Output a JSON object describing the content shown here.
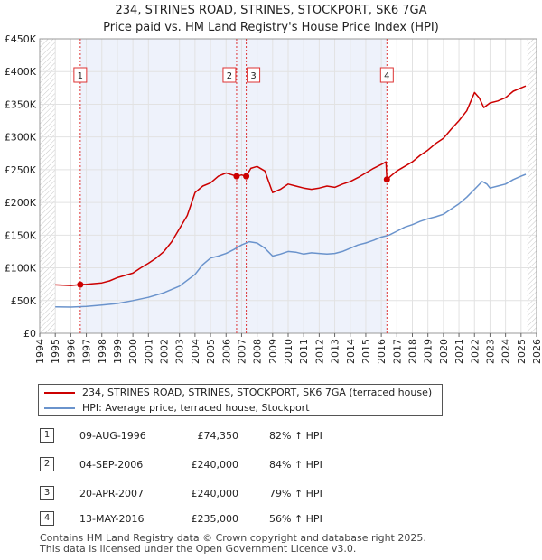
{
  "chart_data": {
    "type": "line",
    "title": "234, STRINES ROAD, STRINES, STOCKPORT, SK6 7GA",
    "subtitle": "Price paid vs. HM Land Registry's House Price Index (HPI)",
    "ylim": [
      0,
      450000
    ],
    "xlim": [
      1994,
      2026
    ],
    "y_ticks": [
      0,
      50000,
      100000,
      150000,
      200000,
      250000,
      300000,
      350000,
      400000,
      450000
    ],
    "y_tick_labels": [
      "£0",
      "£50K",
      "£100K",
      "£150K",
      "£200K",
      "£250K",
      "£300K",
      "£350K",
      "£400K",
      "£450K"
    ],
    "x_ticks": [
      "1994",
      "1995",
      "1996",
      "1997",
      "1998",
      "1999",
      "2000",
      "2001",
      "2002",
      "2003",
      "2004",
      "2005",
      "2006",
      "2007",
      "2008",
      "2009",
      "2010",
      "2011",
      "2012",
      "2013",
      "2014",
      "2015",
      "2016",
      "2017",
      "2018",
      "2019",
      "2020",
      "2021",
      "2022",
      "2023",
      "2024",
      "2025",
      "2026"
    ],
    "data_start_x": 1995,
    "data_end_x": 2025.4,
    "series": [
      {
        "name": "234, STRINES ROAD, STRINES, STOCKPORT, SK6 7GA (terraced house)",
        "color": "#cc0000",
        "points": [
          [
            1995,
            74000
          ],
          [
            1995.5,
            73500
          ],
          [
            1996,
            73000
          ],
          [
            1996.6,
            74350
          ],
          [
            1997,
            75000
          ],
          [
            1998,
            77000
          ],
          [
            1998.5,
            80000
          ],
          [
            1999,
            85000
          ],
          [
            2000,
            92000
          ],
          [
            2000.5,
            100000
          ],
          [
            2001,
            107000
          ],
          [
            2001.5,
            115000
          ],
          [
            2002,
            125000
          ],
          [
            2002.5,
            140000
          ],
          [
            2003,
            160000
          ],
          [
            2003.5,
            180000
          ],
          [
            2004,
            215000
          ],
          [
            2004.5,
            225000
          ],
          [
            2005,
            230000
          ],
          [
            2005.5,
            240000
          ],
          [
            2006,
            245000
          ],
          [
            2006.68,
            240000
          ],
          [
            2007,
            242000
          ],
          [
            2007.3,
            240000
          ],
          [
            2007.6,
            252000
          ],
          [
            2008,
            255000
          ],
          [
            2008.5,
            248000
          ],
          [
            2009,
            215000
          ],
          [
            2009.5,
            220000
          ],
          [
            2010,
            228000
          ],
          [
            2010.5,
            225000
          ],
          [
            2011,
            222000
          ],
          [
            2011.5,
            220000
          ],
          [
            2012,
            222000
          ],
          [
            2012.5,
            225000
          ],
          [
            2013,
            223000
          ],
          [
            2013.5,
            228000
          ],
          [
            2014,
            232000
          ],
          [
            2014.5,
            238000
          ],
          [
            2015,
            245000
          ],
          [
            2015.5,
            252000
          ],
          [
            2016,
            258000
          ],
          [
            2016.3,
            262000
          ],
          [
            2016.36,
            235000
          ],
          [
            2016.6,
            240000
          ],
          [
            2017,
            248000
          ],
          [
            2017.5,
            255000
          ],
          [
            2018,
            262000
          ],
          [
            2018.5,
            272000
          ],
          [
            2019,
            280000
          ],
          [
            2019.5,
            290000
          ],
          [
            2020,
            298000
          ],
          [
            2020.5,
            312000
          ],
          [
            2021,
            325000
          ],
          [
            2021.5,
            340000
          ],
          [
            2022,
            368000
          ],
          [
            2022.3,
            360000
          ],
          [
            2022.6,
            345000
          ],
          [
            2023,
            352000
          ],
          [
            2023.5,
            355000
          ],
          [
            2024,
            360000
          ],
          [
            2024.5,
            370000
          ],
          [
            2025,
            375000
          ],
          [
            2025.3,
            378000
          ]
        ]
      },
      {
        "name": "HPI: Average price, terraced house, Stockport",
        "color": "#6a93cc",
        "points": [
          [
            1995,
            40500
          ],
          [
            1996,
            40000
          ],
          [
            1997,
            41000
          ],
          [
            1998,
            43000
          ],
          [
            1999,
            45500
          ],
          [
            2000,
            50000
          ],
          [
            2001,
            55000
          ],
          [
            2002,
            62000
          ],
          [
            2003,
            72000
          ],
          [
            2004,
            90000
          ],
          [
            2004.5,
            105000
          ],
          [
            2005,
            115000
          ],
          [
            2005.5,
            118000
          ],
          [
            2006,
            122000
          ],
          [
            2006.5,
            128000
          ],
          [
            2007,
            135000
          ],
          [
            2007.5,
            140000
          ],
          [
            2008,
            138000
          ],
          [
            2008.5,
            130000
          ],
          [
            2009,
            118000
          ],
          [
            2009.5,
            121000
          ],
          [
            2010,
            125000
          ],
          [
            2010.5,
            124000
          ],
          [
            2011,
            121000
          ],
          [
            2011.5,
            123000
          ],
          [
            2012,
            122000
          ],
          [
            2012.5,
            121000
          ],
          [
            2013,
            122000
          ],
          [
            2013.5,
            125000
          ],
          [
            2014,
            130000
          ],
          [
            2014.5,
            135000
          ],
          [
            2015,
            138000
          ],
          [
            2015.5,
            142000
          ],
          [
            2016,
            147000
          ],
          [
            2016.5,
            150000
          ],
          [
            2017,
            156000
          ],
          [
            2017.5,
            162000
          ],
          [
            2018,
            166000
          ],
          [
            2018.5,
            171000
          ],
          [
            2019,
            175000
          ],
          [
            2019.5,
            178000
          ],
          [
            2020,
            182000
          ],
          [
            2020.5,
            190000
          ],
          [
            2021,
            198000
          ],
          [
            2021.5,
            208000
          ],
          [
            2022,
            220000
          ],
          [
            2022.5,
            232000
          ],
          [
            2022.8,
            228000
          ],
          [
            2023,
            222000
          ],
          [
            2023.5,
            225000
          ],
          [
            2024,
            228000
          ],
          [
            2024.5,
            235000
          ],
          [
            2025,
            240000
          ],
          [
            2025.3,
            243000
          ]
        ]
      }
    ],
    "sales": [
      {
        "label": "1",
        "x": 1996.61,
        "y": 74350
      },
      {
        "label": "2",
        "x": 2006.68,
        "y": 240000
      },
      {
        "label": "3",
        "x": 2007.3,
        "y": 240000
      },
      {
        "label": "4",
        "x": 2016.36,
        "y": 235000
      }
    ],
    "shaded_regions": [
      {
        "from": 1994,
        "to": 1995,
        "style": "hatch"
      },
      {
        "from": 2025.4,
        "to": 2026,
        "style": "hatch"
      }
    ],
    "highlight_band": {
      "from": 1996.61,
      "to": 2016.36,
      "color": "#eef2fb"
    }
  },
  "legend": {
    "red_label": "234, STRINES ROAD, STRINES, STOCKPORT, SK6 7GA (terraced house)",
    "blue_label": "HPI: Average price, terraced house, Stockport"
  },
  "transactions": [
    {
      "num": "1",
      "date": "09-AUG-1996",
      "price": "£74,350",
      "hpi": "82% ↑ HPI"
    },
    {
      "num": "2",
      "date": "04-SEP-2006",
      "price": "£240,000",
      "hpi": "84% ↑ HPI"
    },
    {
      "num": "3",
      "date": "20-APR-2007",
      "price": "£240,000",
      "hpi": "79% ↑ HPI"
    },
    {
      "num": "4",
      "date": "13-MAY-2016",
      "price": "£235,000",
      "hpi": "56% ↑ HPI"
    }
  ],
  "footer": {
    "line1": "Contains HM Land Registry data © Crown copyright and database right 2025.",
    "line2": "This data is licensed under the Open Government Licence v3.0."
  }
}
